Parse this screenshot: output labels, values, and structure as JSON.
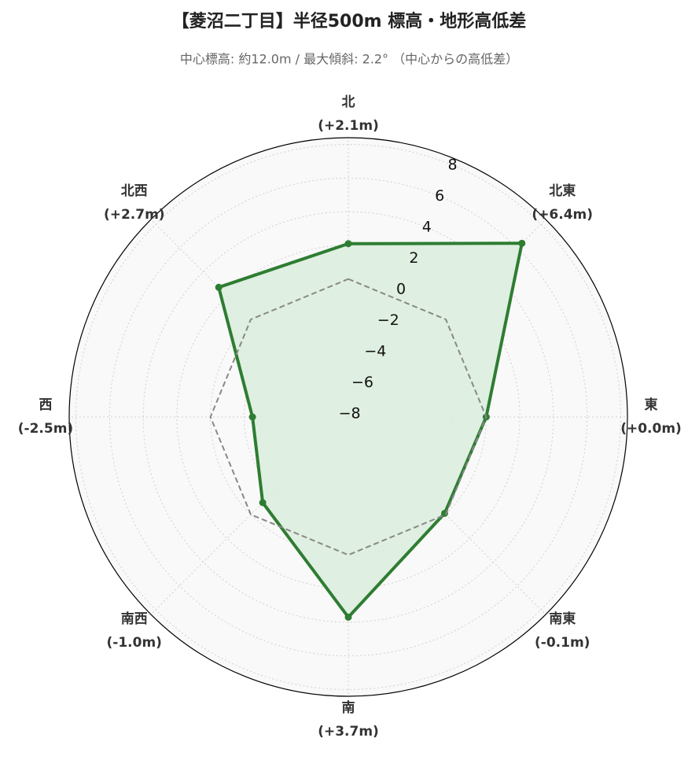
{
  "chart_data": {
    "type": "radar",
    "title": "【菱沼二丁目】半径500m 標高・地形高低差",
    "subtitle": "中心標高: 約12.0m / 最大傾斜: 2.2° （中心からの高低差）",
    "categories": [
      "北",
      "北東",
      "東",
      "南東",
      "南",
      "南西",
      "西",
      "北西"
    ],
    "series": [
      {
        "color": "#2e7d32",
        "fill": "#dcedde",
        "values": [
          2.1,
          6.4,
          0.0,
          -0.1,
          3.7,
          -1.0,
          -2.5,
          2.7
        ],
        "value_labels": [
          "(+2.1m)",
          "(+6.4m)",
          "(+0.0m)",
          "(-0.1m)",
          "(+3.7m)",
          "(-1.0m)",
          "(-2.5m)",
          "(+2.7m)"
        ]
      },
      {
        "color": "#888888",
        "style": "dashed",
        "values": [
          0,
          0,
          0,
          0,
          0,
          0,
          0,
          0
        ]
      }
    ],
    "ylim": [
      -8.2,
      8.4
    ],
    "yticks": [
      {
        "value": -8,
        "label": "−8"
      },
      {
        "value": -6,
        "label": "−6"
      },
      {
        "value": -4,
        "label": "−4"
      },
      {
        "value": -2,
        "label": "−2"
      },
      0,
      2,
      4,
      6,
      8
    ],
    "grid": true
  }
}
